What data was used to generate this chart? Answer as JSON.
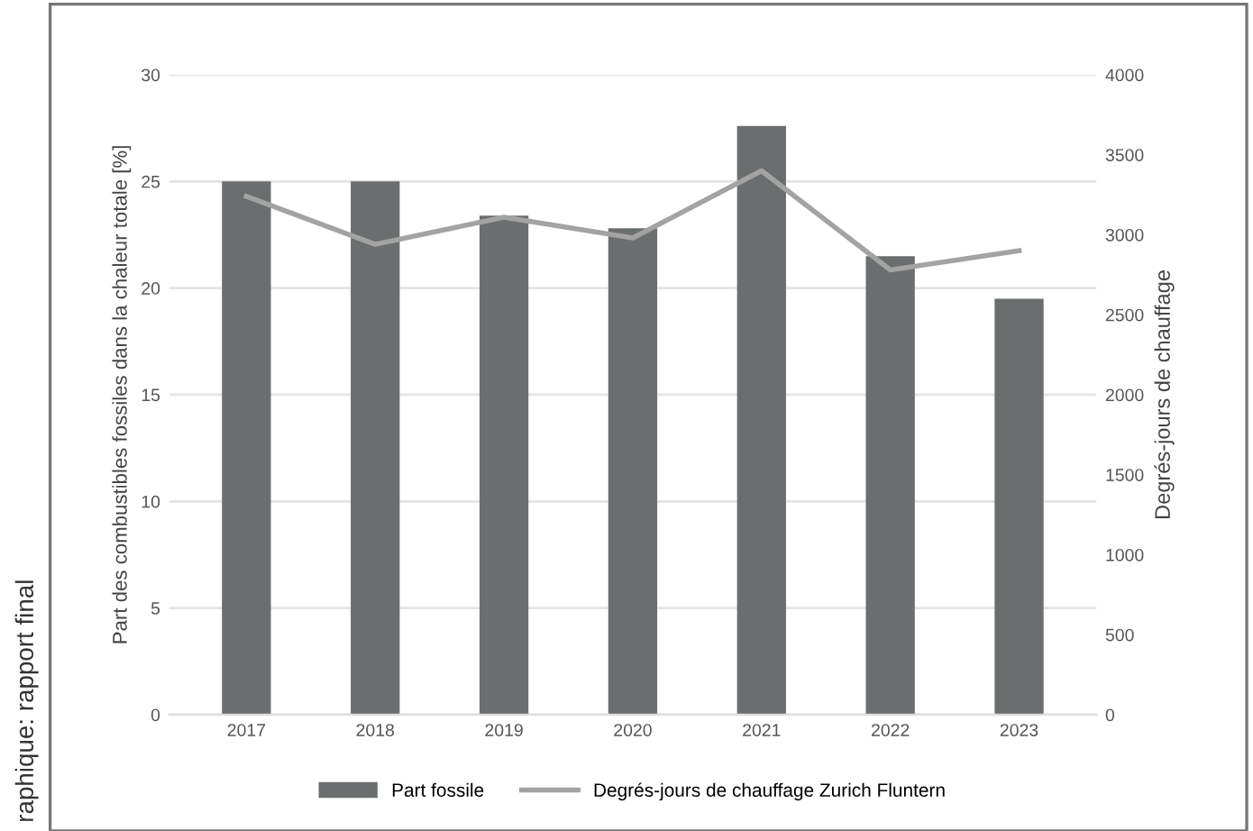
{
  "chart_data": {
    "type": "bar",
    "categories": [
      "2017",
      "2018",
      "2019",
      "2020",
      "2021",
      "2022",
      "2023"
    ],
    "series": [
      {
        "name": "Part fossile",
        "color": "#6b6e6e",
        "values": [
          25.0,
          25.0,
          23.4,
          22.8,
          27.6,
          21.5,
          19.5
        ]
      },
      {
        "name": "Degrés-jours de chauffage Zurich Fluntern",
        "type": "line",
        "axis": "y2",
        "color": "#a3a3a3",
        "values": [
          3240,
          2940,
          3110,
          2980,
          3400,
          2780,
          2900
        ]
      }
    ],
    "ylabel": "Part des combustibles fossiles dans la chaleur totale [%]",
    "y2label": "Degrés-jours de chauffage",
    "ylim": [
      0,
      30
    ],
    "yticks": [
      0,
      5,
      10,
      15,
      20,
      25,
      30
    ],
    "y2lim": [
      0,
      4000
    ],
    "y2ticks": [
      0,
      500,
      1000,
      1500,
      2000,
      2500,
      3000,
      3500,
      4000
    ],
    "grid": "y",
    "legend": "bottom",
    "marker": "none",
    "line_style": "solid",
    "annotations": [
      "raphique: rapport final"
    ]
  }
}
